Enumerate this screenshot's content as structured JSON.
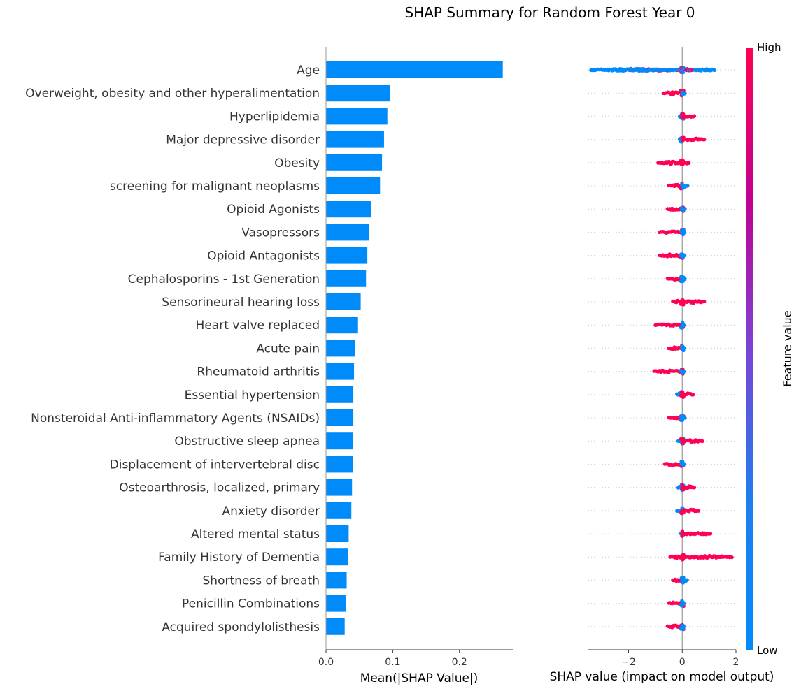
{
  "chart_data": [
    {
      "type": "bar",
      "orientation": "horizontal",
      "title": "SHAP Summary for Random Forest Year 0",
      "xlabel": "Mean(|SHAP Value|)",
      "xlim": [
        0,
        0.28
      ],
      "xticks": [
        "0.0",
        "0.1",
        "0.2"
      ],
      "bar_color": "#008bfb",
      "categories": [
        "Age",
        "Overweight, obesity and other hyperalimentation",
        "Hyperlipidemia",
        "Major depressive disorder",
        "Obesity",
        "screening for malignant neoplasms",
        "Opioid Agonists",
        "Vasopressors",
        "Opioid Antagonists",
        "Cephalosporins - 1st Generation",
        "Sensorineural hearing loss",
        "Heart valve replaced",
        "Acute pain",
        "Rheumatoid arthritis",
        "Essential hypertension",
        "Nonsteroidal Anti-inflammatory Agents (NSAIDs)",
        "Obstructive sleep apnea",
        "Displacement of intervertebral disc",
        "Osteoarthrosis, localized, primary",
        "Anxiety disorder",
        "Altered mental status",
        "Family History of Dementia",
        "Shortness of breath",
        "Penicillin Combinations",
        "Acquired spondylolisthesis"
      ],
      "values": [
        0.265,
        0.096,
        0.092,
        0.087,
        0.084,
        0.081,
        0.068,
        0.065,
        0.062,
        0.06,
        0.052,
        0.048,
        0.044,
        0.042,
        0.041,
        0.041,
        0.04,
        0.04,
        0.039,
        0.038,
        0.034,
        0.033,
        0.031,
        0.03,
        0.028
      ]
    },
    {
      "type": "scatter",
      "subtype": "beeswarm",
      "xlabel": "SHAP value (impact on model output)",
      "xlim": [
        -3.5,
        2.0
      ],
      "xticks": [
        "−2",
        "0",
        "2"
      ],
      "low_color": "#008bfb",
      "high_color": "#ff0052",
      "colorbar": {
        "label": "Feature value",
        "high": "High",
        "low": "Low"
      },
      "features": [
        {
          "neg": [
            -3.4,
            -0.2
          ],
          "negc": "low",
          "pos": [
            -0.05,
            0.35
          ],
          "posc": "mix",
          "extra": [
            [
              0.2,
              1.2,
              "low"
            ],
            [
              -2.0,
              -0.1,
              "high"
            ]
          ]
        },
        {
          "neg": [
            -0.7,
            0.0
          ],
          "negc": "high",
          "pos": [
            0.0,
            0.1
          ],
          "posc": "low"
        },
        {
          "neg": [
            -0.1,
            0.0
          ],
          "negc": "low",
          "pos": [
            0.0,
            0.45
          ],
          "posc": "high"
        },
        {
          "neg": [
            -0.1,
            0.0
          ],
          "negc": "low",
          "pos": [
            0.0,
            0.82
          ],
          "posc": "high"
        },
        {
          "neg": [
            -0.9,
            0.0
          ],
          "negc": "high",
          "pos": [
            0.0,
            0.25
          ],
          "posc": "high"
        },
        {
          "neg": [
            -0.5,
            0.0
          ],
          "negc": "high",
          "pos": [
            0.0,
            0.2
          ],
          "posc": "low"
        },
        {
          "neg": [
            -0.55,
            0.0
          ],
          "negc": "high",
          "pos": [
            0.0,
            0.1
          ],
          "posc": "low"
        },
        {
          "neg": [
            -0.85,
            0.0
          ],
          "negc": "high",
          "pos": [
            0.0,
            0.08
          ],
          "posc": "low"
        },
        {
          "neg": [
            -0.85,
            0.0
          ],
          "negc": "high",
          "pos": [
            0.0,
            0.08
          ],
          "posc": "low"
        },
        {
          "neg": [
            -0.55,
            0.0
          ],
          "negc": "high",
          "pos": [
            0.0,
            0.1
          ],
          "posc": "low"
        },
        {
          "neg": [
            -0.35,
            0.0
          ],
          "negc": "high",
          "pos": [
            0.0,
            0.82
          ],
          "posc": "high"
        },
        {
          "neg": [
            -1.0,
            0.0
          ],
          "negc": "high",
          "pos": [
            0.0,
            0.06
          ],
          "posc": "low"
        },
        {
          "neg": [
            -0.5,
            0.0
          ],
          "negc": "high",
          "pos": [
            0.0,
            0.06
          ],
          "posc": "low"
        },
        {
          "neg": [
            -1.05,
            0.0
          ],
          "negc": "high",
          "pos": [
            0.0,
            0.06
          ],
          "posc": "low"
        },
        {
          "neg": [
            -0.2,
            0.0
          ],
          "negc": "low",
          "pos": [
            0.0,
            0.4
          ],
          "posc": "high"
        },
        {
          "neg": [
            -0.5,
            0.0
          ],
          "negc": "high",
          "pos": [
            0.0,
            0.1
          ],
          "posc": "low"
        },
        {
          "neg": [
            -0.15,
            0.0
          ],
          "negc": "low",
          "pos": [
            0.0,
            0.75
          ],
          "posc": "high"
        },
        {
          "neg": [
            -0.65,
            0.0
          ],
          "negc": "high",
          "pos": [
            0.0,
            0.06
          ],
          "posc": "low"
        },
        {
          "neg": [
            -0.15,
            0.0
          ],
          "negc": "low",
          "pos": [
            0.0,
            0.45
          ],
          "posc": "high"
        },
        {
          "neg": [
            -0.2,
            0.0
          ],
          "negc": "low",
          "pos": [
            0.0,
            0.6
          ],
          "posc": "high"
        },
        {
          "neg": [
            -0.05,
            0.0
          ],
          "negc": "low",
          "pos": [
            0.0,
            1.05
          ],
          "posc": "high"
        },
        {
          "neg": [
            -0.45,
            0.0
          ],
          "negc": "high",
          "pos": [
            0.0,
            1.85
          ],
          "posc": "high"
        },
        {
          "neg": [
            -0.35,
            0.0
          ],
          "negc": "high",
          "pos": [
            0.0,
            0.18
          ],
          "posc": "low"
        },
        {
          "neg": [
            -0.5,
            0.0
          ],
          "negc": "high",
          "pos": [
            0.0,
            0.06
          ],
          "posc": "low"
        },
        {
          "neg": [
            -0.55,
            0.0
          ],
          "negc": "high",
          "pos": [
            0.0,
            0.06
          ],
          "posc": "low"
        }
      ]
    }
  ]
}
